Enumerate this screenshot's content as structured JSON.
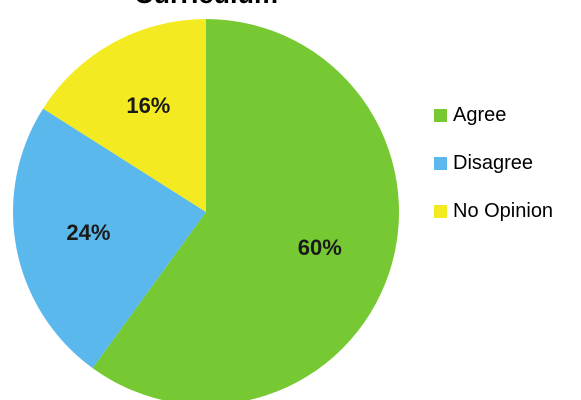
{
  "chart_data": {
    "type": "pie",
    "title": "Curriculum",
    "slices": [
      {
        "label": "Agree",
        "value": 60,
        "display": "60%",
        "color": "#76c932"
      },
      {
        "label": "Disagree",
        "value": 24,
        "display": "24%",
        "color": "#5bb8ec"
      },
      {
        "label": "No Opinion",
        "value": 16,
        "display": "16%",
        "color": "#f3ea22"
      }
    ],
    "legend_position": "right"
  }
}
